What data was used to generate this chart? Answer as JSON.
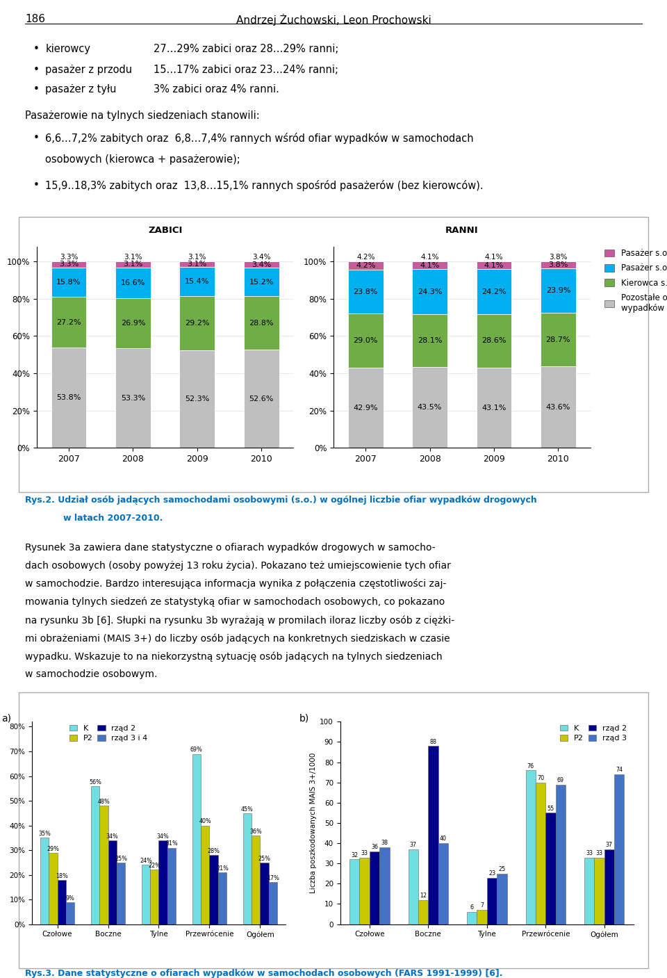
{
  "page_number": "186",
  "header_author": "Andrzej Żuchowski, Leon Prochowski",
  "bullet1": [
    [
      "kierowcy",
      "27…29% zabici oraz 28…29% ranni;"
    ],
    [
      "pasażer z przodu",
      "15…17% zabici oraz 23…24% ranni;"
    ],
    [
      "pasażer z tyłu",
      "3% zabici oraz 4% ranni."
    ]
  ],
  "paragraph1": "Pasażerowie na tylnych siedzeniach stanowili:",
  "bullet2": [
    "6,6…7,2% zabitych oraz  6,8…7,4% rannych wśród ofiar wypadków w samochodach osobowych (kierowca + pasażerowie);",
    "15,9..18,3% zabitych oraz  13,8…15,1% rannych spośród pasażerów (bez kierowców)."
  ],
  "fig2_caption_line1": "Rys.2. Udział osób jadących samochodami osobowymi (s.o.) w ogólnej liczbie ofiar wypadków drogowych",
  "fig2_caption_line2": "w latach 2007-2010.",
  "zabici_title": "ZABICI",
  "ranni_title": "RANNI",
  "years": [
    2007,
    2008,
    2009,
    2010
  ],
  "zabici_data": {
    "Pozostałe ofiary\nwypadków drogowych": [
      53.8,
      53.3,
      52.3,
      52.6
    ],
    "Kierowca s.o.": [
      27.2,
      26.9,
      29.2,
      28.8
    ],
    "Pasażer s.o. z przodu": [
      15.8,
      16.6,
      15.4,
      15.2
    ],
    "Pasażer s.o. z tyłu": [
      3.3,
      3.1,
      3.1,
      3.4
    ]
  },
  "ranni_data": {
    "Pozostałe ofiary\nwypadków drogowych": [
      42.9,
      43.5,
      43.1,
      43.6
    ],
    "Kierowca s.o.": [
      29.0,
      28.1,
      28.6,
      28.7
    ],
    "Pasażer s.o. z przodu": [
      23.8,
      24.3,
      24.2,
      23.9
    ],
    "Pasażer s.o. z tyłu": [
      4.2,
      4.1,
      4.1,
      3.8
    ]
  },
  "bar_colors": {
    "Pozostałe ofiary\nwypadków drogowych": "#bfbfbf",
    "Kierowca s.o.": "#70ad47",
    "Pasażer s.o. z przodu": "#00b0f0",
    "Pasażer s.o. z tyłu": "#c55a9d"
  },
  "legend_order": [
    "Pasażer s.o. z tyłu",
    "Pasażer s.o. z przodu",
    "Kierowca s.o.",
    "Pozostałe ofiary\nwypadków drogowych"
  ],
  "fig3_para_lines": [
    "Rysunek 3a zawiera dane statystyczne o ofiarach wypadków drogowych w samocho-",
    "dach osobowych (osoby powyżej 13 roku życia). Pokazano też umiejscowienie tych ofiar",
    "w samochodzie. Bardzo interesująca informacja wynika z połączenia częstotliwości zaj-",
    "mowania tylnych siedzeń ze statystyką ofiar w samochodach osobowych, co pokazano",
    "na rysunku 3b [6]. Słupki na rysunku 3b wyrażają w promilach iloraz liczby osób z ciężki-",
    "mi obrażeniami (MAIS 3+) do liczby osób jadących na konkretnych siedziskach w czasie",
    "wypadku. Wskazuje to na niekorzystną sytuację osób jadących na tylnych siedzeniach",
    "w samochodzie osobowym."
  ],
  "fig3_caption": "Rys.3. Dane statystyczne o ofiarach wypadków w samochodach osobowych (FARS 1991-1999) [6].",
  "fig3a_categories": [
    "Czołowe",
    "Boczne",
    "Tylne",
    "Przewrócenie",
    "Ogółem"
  ],
  "fig3a_legend": [
    "K",
    "P2",
    "rząd 2",
    "rząd 3 i 4"
  ],
  "fig3a_colors": [
    "#70dde0",
    "#c8c800",
    "#00008b",
    "#4472c4"
  ],
  "fig3a_data": {
    "K": [
      35,
      56,
      24,
      69,
      45
    ],
    "P2": [
      29,
      48,
      22,
      40,
      36
    ],
    "rząd 2": [
      18,
      34,
      34,
      28,
      25
    ],
    "rząd 3 i 4": [
      9,
      25,
      31,
      21,
      17
    ]
  },
  "fig3b_categories": [
    "Czołowe",
    "Boczne",
    "Tylne",
    "Przewrócenie",
    "Ogółem"
  ],
  "fig3b_legend": [
    "K",
    "P2",
    "rząd 2",
    "rząd 3"
  ],
  "fig3b_colors": [
    "#70dde0",
    "#c8c800",
    "#00008b",
    "#4472c4"
  ],
  "fig3b_data": {
    "K": [
      32,
      37,
      6,
      76,
      33
    ],
    "P2": [
      33,
      12,
      7,
      70,
      33
    ],
    "rząd 2": [
      36,
      88,
      23,
      55,
      37
    ],
    "rząd 3": [
      38,
      40,
      25,
      69,
      74
    ]
  },
  "fig3b_ylabel": "Liczba poszkodowanych MAIS 3+/1000"
}
